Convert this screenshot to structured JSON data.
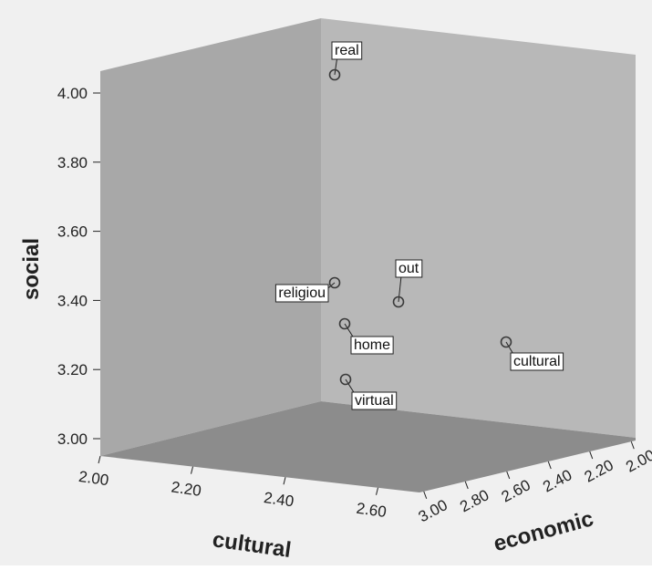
{
  "chart_data": {
    "type": "scatter",
    "subtype": "3d",
    "title": "",
    "xlabel": "cultural",
    "ylabel": "social",
    "zlabel": "economic",
    "xlim": [
      2.0,
      2.6
    ],
    "ylim": [
      3.0,
      4.0
    ],
    "zlim": [
      2.0,
      3.0
    ],
    "x_ticks": [
      "2.00",
      "2.20",
      "2.40",
      "2.60"
    ],
    "y_ticks": [
      "3.00",
      "3.20",
      "3.40",
      "3.60",
      "3.80",
      "4.00"
    ],
    "z_ticks": [
      "3.00",
      "2.80",
      "2.60",
      "2.40",
      "2.20",
      "2.00"
    ],
    "points": [
      {
        "label": "real",
        "cultural": 2.25,
        "social": 4.05,
        "economic": 2.05
      },
      {
        "label": "religiou",
        "cultural": 2.33,
        "social": 3.45,
        "economic": 2.2
      },
      {
        "label": "out",
        "cultural": 2.45,
        "social": 3.4,
        "economic": 2.1
      },
      {
        "label": "home",
        "cultural": 2.4,
        "social": 3.33,
        "economic": 2.3
      },
      {
        "label": "cultural",
        "cultural": 2.42,
        "social": 3.28,
        "economic": 1.7
      },
      {
        "label": "virtual",
        "cultural": 2.52,
        "social": 3.18,
        "economic": 2.35
      }
    ],
    "colors": {
      "background": "#f0f0f0",
      "back_wall": "#b8b8b8",
      "left_wall": "#a8a8a8",
      "floor": "#8c8c8c",
      "marker": "#3a3a3a"
    }
  }
}
